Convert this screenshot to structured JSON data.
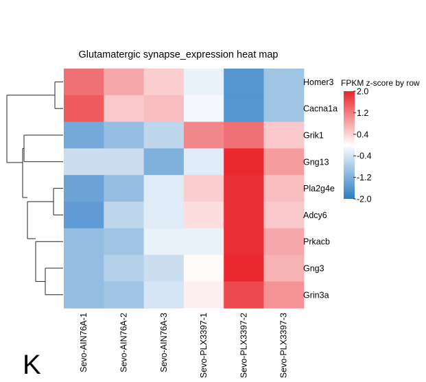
{
  "panel_label": "K",
  "chart_data": {
    "type": "heatmap",
    "title": "Glutamatergic synapse_expression heat map",
    "columns": [
      "Sevo-AIN76A-1",
      "Sevo-AIN76A-2",
      "Sevo-AIN76A-3",
      "Sevo-PLX3397-1",
      "Sevo-PLX3397-2",
      "Sevo-PLX3397-3"
    ],
    "rows": [
      "Homer3",
      "Cacna1a",
      "Grik1",
      "Gng13",
      "Pla2g4e",
      "Adcy6",
      "Prkacb",
      "Gng3",
      "Grin3a"
    ],
    "values": [
      [
        1.3,
        0.8,
        0.45,
        -0.2,
        -1.6,
        -0.9
      ],
      [
        1.5,
        0.5,
        0.6,
        -0.1,
        -1.6,
        -0.9
      ],
      [
        -1.3,
        -1.0,
        -0.6,
        1.1,
        1.3,
        0.5
      ],
      [
        -0.5,
        -0.5,
        -1.2,
        -0.3,
        1.95,
        0.9
      ],
      [
        -1.4,
        -1.0,
        -0.3,
        0.45,
        1.9,
        0.6
      ],
      [
        -1.5,
        -0.6,
        -0.3,
        0.3,
        1.9,
        0.5
      ],
      [
        -1.0,
        -0.9,
        -0.2,
        -0.2,
        1.9,
        0.8
      ],
      [
        -1.0,
        -0.7,
        -0.5,
        0.05,
        1.95,
        0.7
      ],
      [
        -1.0,
        -0.9,
        -0.4,
        0.15,
        1.65,
        1.0
      ]
    ],
    "colorbar": {
      "label": "FPKM z-score by row",
      "min": -2.0,
      "max": 2.0,
      "ticks": [
        2.0,
        1.2,
        0.4,
        -0.4,
        -1.2,
        -2.0
      ],
      "tick_labels": [
        "2.0",
        "1.2",
        "0.4",
        "-0.4",
        "-1.2",
        "-2.0"
      ],
      "colors": {
        "low": "#2b7bc4",
        "mid": "#ffffff",
        "high": "#e8242a"
      }
    },
    "dendrogram": "rows"
  }
}
